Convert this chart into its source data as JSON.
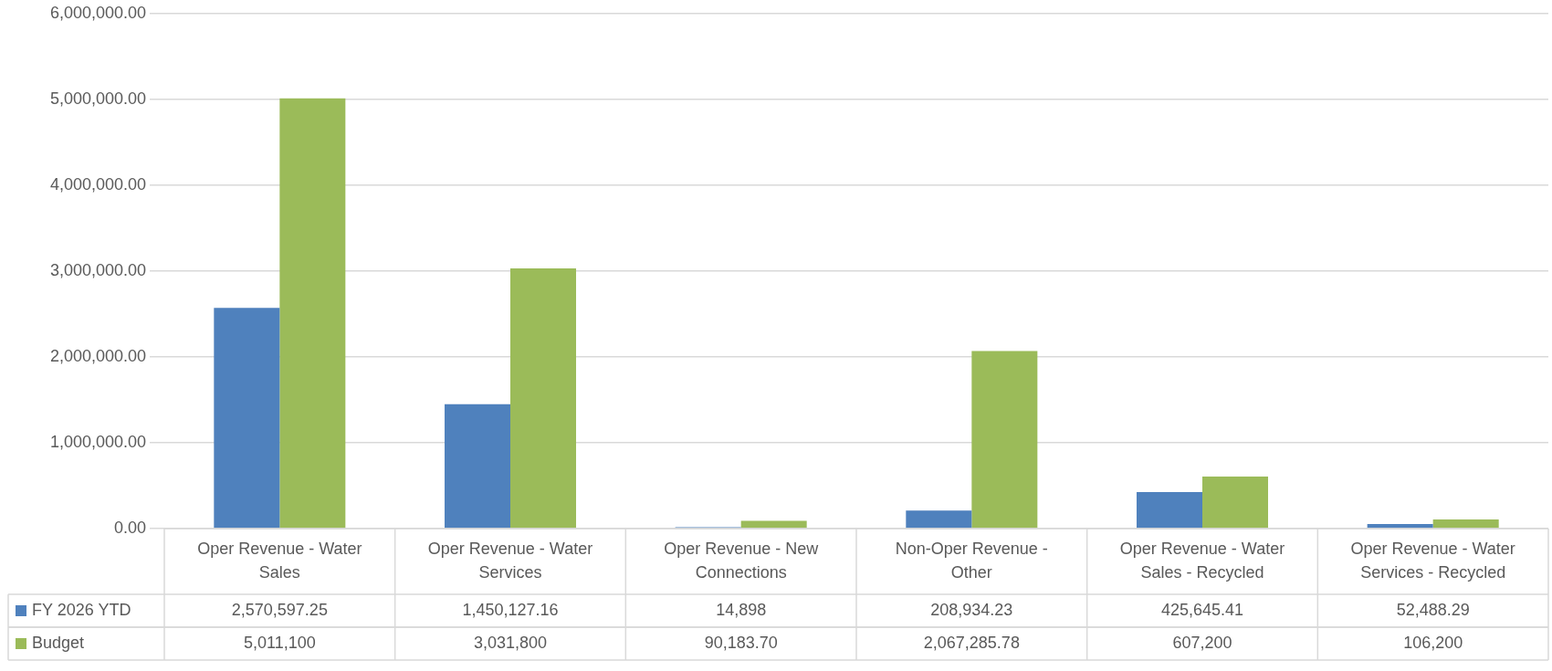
{
  "chart_data": {
    "type": "bar",
    "categories": [
      "Oper Revenue - Water Sales",
      "Oper Revenue - Water Services",
      "Oper Revenue - New Connections",
      "Non-Oper Revenue - Other",
      "Oper Revenue - Water Sales - Recycled",
      "Oper Revenue - Water Services - Recycled"
    ],
    "series": [
      {
        "name": "FY 2026 YTD",
        "color": "#4f81bd",
        "values": [
          2570597.25,
          1450127.16,
          14898,
          208934.23,
          425645.41,
          52488.29
        ],
        "value_labels": [
          "2,570,597.25",
          "1,450,127.16",
          "14,898",
          "208,934.23",
          "425,645.41",
          "52,488.29"
        ]
      },
      {
        "name": "Budget",
        "color": "#9bbb59",
        "values": [
          5011100,
          3031800,
          90183.7,
          2067285.78,
          607200,
          106200
        ],
        "value_labels": [
          "5,011,100",
          "3,031,800",
          "90,183.70",
          "2,067,285.78",
          "607,200",
          "106,200"
        ]
      }
    ],
    "ylim": [
      0,
      6000000
    ],
    "yticks": [
      {
        "value": 0,
        "label": "0.00"
      },
      {
        "value": 1000000,
        "label": "1,000,000.00"
      },
      {
        "value": 2000000,
        "label": "2,000,000.00"
      },
      {
        "value": 3000000,
        "label": "3,000,000.00"
      },
      {
        "value": 4000000,
        "label": "4,000,000.00"
      },
      {
        "value": 5000000,
        "label": "5,000,000.00"
      },
      {
        "value": 6000000,
        "label": "6,000,000.00"
      }
    ],
    "grid": "y",
    "legend": "bottom"
  }
}
